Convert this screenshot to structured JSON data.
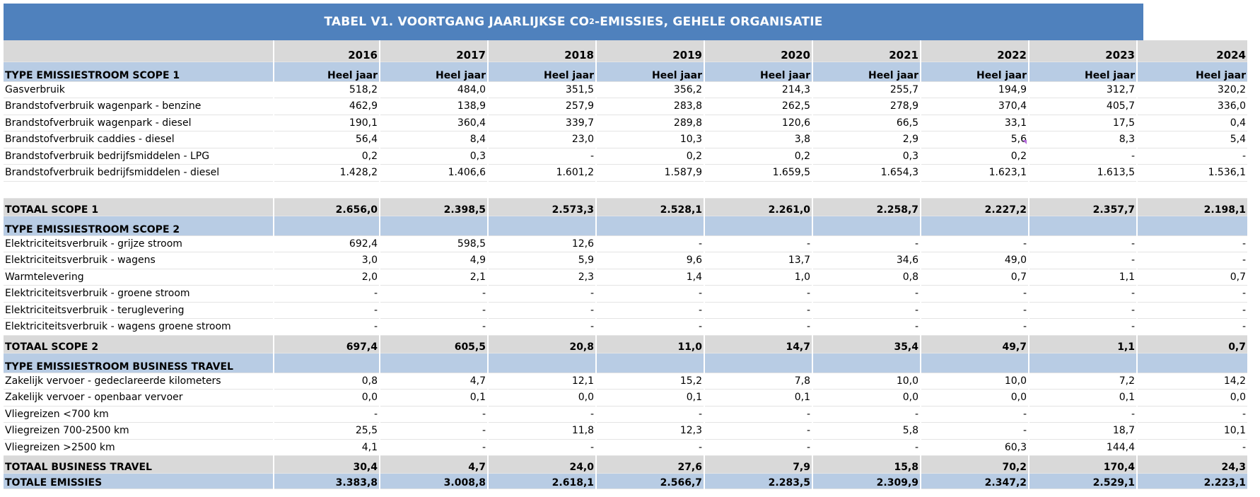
{
  "title": {
    "main": "TABEL V1. VOORTGANG JAARLIJKSE CO",
    "sub": "2",
    "rest": "-EMISSIES, GEHELE ORGANISATIE"
  },
  "years": [
    "2016",
    "2017",
    "2018",
    "2019",
    "2020",
    "2021",
    "2022",
    "2023",
    "2024"
  ],
  "rows": [
    {
      "type": "sect",
      "label": "TYPE EMISSIESTROOM SCOPE 1",
      "values": [
        "Heel jaar",
        "Heel jaar",
        "Heel jaar",
        "Heel jaar",
        "Heel jaar",
        "Heel jaar",
        "Heel jaar",
        "Heel jaar",
        "Heel jaar"
      ]
    },
    {
      "type": "data",
      "label": "Gasverbruik",
      "values": [
        "518,2",
        "484,0",
        "351,5",
        "356,2",
        "214,3",
        "255,7",
        "194,9",
        "312,7",
        "320,2"
      ]
    },
    {
      "type": "data",
      "label": "Brandstofverbruik wagenpark - benzine",
      "values": [
        "462,9",
        "138,9",
        "257,9",
        "283,8",
        "262,5",
        "278,9",
        "370,4",
        "405,7",
        "336,0"
      ]
    },
    {
      "type": "data",
      "label": "Brandstofverbruik wagenpark - diesel",
      "values": [
        "190,1",
        "360,4",
        "339,7",
        "289,8",
        "120,6",
        "66,5",
        "33,1",
        "17,5",
        "0,4"
      ]
    },
    {
      "type": "data",
      "label": "Brandstofverbruik caddies - diesel",
      "values": [
        "56,4",
        "8,4",
        "23,0",
        "10,3",
        "3,8",
        "2,9",
        "5,6",
        "8,3",
        "5,4"
      ]
    },
    {
      "type": "data",
      "label": "Brandstofverbruik bedrijfsmiddelen - LPG",
      "values": [
        "0,2",
        "0,3",
        "-",
        "0,2",
        "0,2",
        "0,3",
        "0,2",
        "-",
        "-"
      ]
    },
    {
      "type": "data",
      "label": "Brandstofverbruik bedrijfsmiddelen - diesel",
      "values": [
        "1.428,2",
        "1.406,6",
        "1.601,2",
        "1.587,9",
        "1.659,5",
        "1.654,3",
        "1.623,1",
        "1.613,5",
        "1.536,1"
      ]
    },
    {
      "type": "blank",
      "label": "",
      "values": [
        "",
        "",
        "",
        "",
        "",
        "",
        "",
        "",
        ""
      ]
    },
    {
      "type": "total",
      "label": "TOTAAL SCOPE 1",
      "values": [
        "2.656,0",
        "2.398,5",
        "2.573,3",
        "2.528,1",
        "2.261,0",
        "2.258,7",
        "2.227,2",
        "2.357,7",
        "2.198,1"
      ]
    },
    {
      "type": "sect",
      "label": "TYPE EMISSIESTROOM SCOPE 2",
      "values": [
        "",
        "",
        "",
        "",
        "",
        "",
        "",
        "",
        ""
      ]
    },
    {
      "type": "data",
      "label": "Elektriciteitsverbruik - grijze stroom",
      "values": [
        "692,4",
        "598,5",
        "12,6",
        "-",
        "-",
        "-",
        "-",
        "-",
        "-"
      ]
    },
    {
      "type": "data",
      "label": "Elektriciteitsverbruik - wagens",
      "values": [
        "3,0",
        "4,9",
        "5,9",
        "9,6",
        "13,7",
        "34,6",
        "49,0",
        "-",
        "-"
      ]
    },
    {
      "type": "data",
      "label": "Warmtelevering",
      "values": [
        "2,0",
        "2,1",
        "2,3",
        "1,4",
        "1,0",
        "0,8",
        "0,7",
        "1,1",
        "0,7"
      ]
    },
    {
      "type": "data",
      "label": "Elektriciteitsverbruik - groene stroom",
      "values": [
        "-",
        "-",
        "-",
        "-",
        "-",
        "-",
        "-",
        "-",
        "-"
      ]
    },
    {
      "type": "data",
      "label": "Elektriciteitsverbruik - teruglevering",
      "values": [
        "-",
        "-",
        "-",
        "-",
        "-",
        "-",
        "-",
        "-",
        "-"
      ]
    },
    {
      "type": "data",
      "label": "Elektriciteitsverbruik - wagens groene stroom",
      "values": [
        "-",
        "-",
        "-",
        "-",
        "-",
        "-",
        "-",
        "-",
        "-"
      ]
    },
    {
      "type": "total",
      "label": "TOTAAL SCOPE 2",
      "values": [
        "697,4",
        "605,5",
        "20,8",
        "11,0",
        "14,7",
        "35,4",
        "49,7",
        "1,1",
        "0,7"
      ]
    },
    {
      "type": "sect",
      "label": "TYPE EMISSIESTROOM BUSINESS TRAVEL",
      "values": [
        "",
        "",
        "",
        "",
        "",
        "",
        "",
        "",
        ""
      ]
    },
    {
      "type": "data",
      "label": "Zakelijk vervoer - gedeclareerde kilometers",
      "values": [
        "0,8",
        "4,7",
        "12,1",
        "15,2",
        "7,8",
        "10,0",
        "10,0",
        "7,2",
        "14,2"
      ]
    },
    {
      "type": "data",
      "label": "Zakelijk vervoer - openbaar vervoer",
      "values": [
        "0,0",
        "0,1",
        "0,0",
        "0,1",
        "0,1",
        "0,0",
        "0,0",
        "0,1",
        "0,0"
      ]
    },
    {
      "type": "data",
      "label": "Vliegreizen <700 km",
      "values": [
        "-",
        "-",
        "-",
        "-",
        "-",
        "-",
        "-",
        "-",
        "-"
      ]
    },
    {
      "type": "data",
      "label": "Vliegreizen 700-2500 km",
      "values": [
        "25,5",
        "-",
        "11,8",
        "12,3",
        "-",
        "5,8",
        "-",
        "18,7",
        "10,1"
      ]
    },
    {
      "type": "data",
      "label": "Vliegreizen >2500 km",
      "values": [
        "4,1",
        "-",
        "-",
        "-",
        "-",
        "-",
        "60,3",
        "144,4",
        "-"
      ]
    },
    {
      "type": "total",
      "label": "TOTAAL BUSINESS TRAVEL",
      "values": [
        "30,4",
        "4,7",
        "24,0",
        "27,6",
        "7,9",
        "15,8",
        "70,2",
        "170,4",
        "24,3"
      ]
    },
    {
      "type": "grand",
      "label": "TOTALE EMISSIES",
      "values": [
        "3.383,8",
        "3.008,8",
        "2.618,1",
        "2.566,7",
        "2.283,5",
        "2.309,9",
        "2.347,2",
        "2.529,1",
        "2.223,1"
      ]
    }
  ]
}
